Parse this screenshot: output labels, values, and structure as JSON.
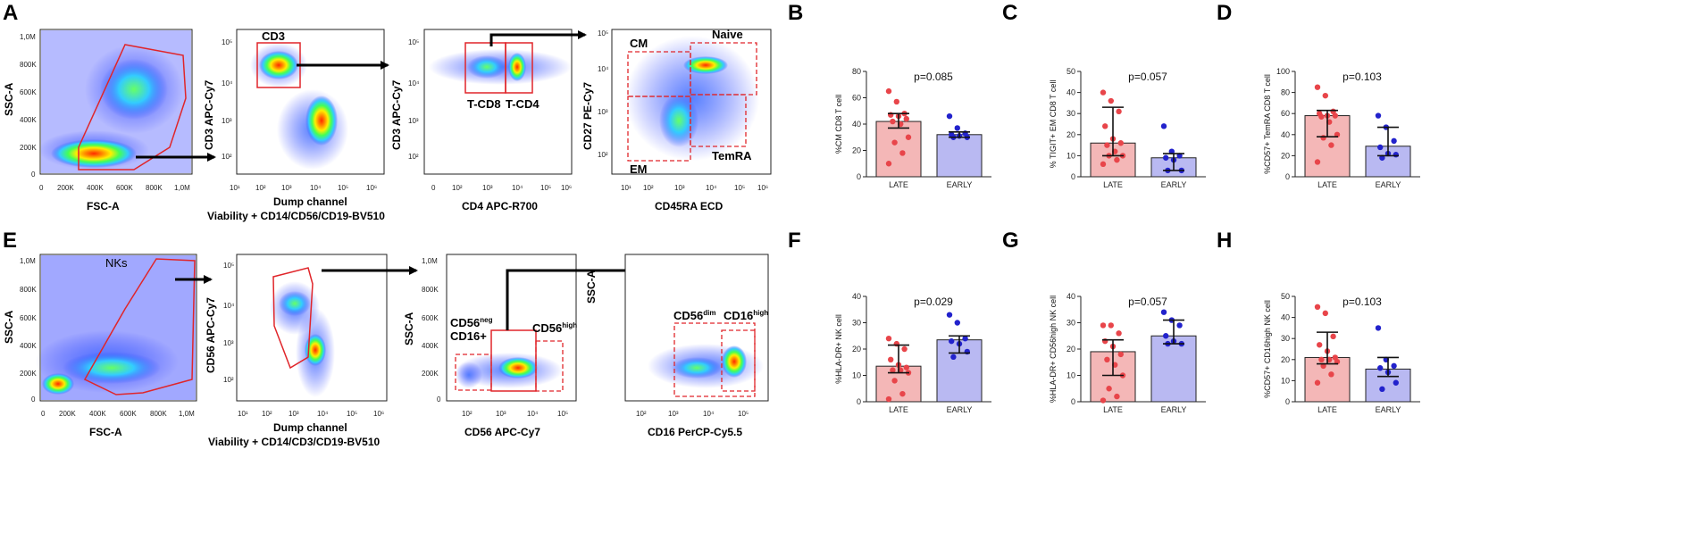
{
  "panel_letters": {
    "A": "A",
    "B": "B",
    "C": "C",
    "D": "D",
    "E": "E",
    "F": "F",
    "G": "G",
    "H": "H"
  },
  "colors": {
    "late_fill": "#f4b7b7",
    "late_dot": "#e8454a",
    "early_fill": "#b9b9f2",
    "early_dot": "#2222cc",
    "gate_red": "#e0252a",
    "arrow": "#000000"
  },
  "flow_top": {
    "p1": {
      "ylabel": "SSC-A",
      "xlabel": "FSC-A"
    },
    "p2": {
      "ylabel": "CD3 APC-Cy7",
      "xlabel1": "Dump channel",
      "xlabel2": "Viability + CD14/CD56/CD19-BV510",
      "gate": "CD3"
    },
    "p3": {
      "ylabel": "CD3 APC-Cy7",
      "xlabel": "CD4 APC-R700",
      "gate1": "T-CD8",
      "gate2": "T-CD4"
    },
    "p4": {
      "ylabel": "CD27 PE-Cy7",
      "xlabel": "CD45RA ECD",
      "cm": "CM",
      "naive": "Naive",
      "em": "EM",
      "temra": "TemRA"
    }
  },
  "flow_bottom": {
    "p1": {
      "ylabel": "SSC-A",
      "xlabel": "FSC-A",
      "gate": "NKs"
    },
    "p2": {
      "ylabel": "CD56 APC-Cy7",
      "xlabel1": "Dump channel",
      "xlabel2": "Viability + CD14/CD3/CD19-BV510"
    },
    "p3": {
      "ylabel": "SSC-A",
      "xlabel": "CD56 APC-Cy7",
      "neg_a": "CD56",
      "neg_sup": "neg",
      "neg_b": "CD16+",
      "high": "CD56",
      "high_sup": "high"
    },
    "p4": {
      "ylabel": "SSC-A",
      "xlabel": "CD16 PerCP-Cy5.5",
      "dim": "CD56",
      "dim_sup": "dim",
      "high": "CD16",
      "high_sup": "high"
    }
  },
  "ticks": {
    "lin_y": [
      "1,0M",
      "800K",
      "600K",
      "400K",
      "200K",
      "0"
    ],
    "lin_x": [
      "0",
      "200K",
      "400K",
      "600K",
      "800K",
      "1,0M"
    ],
    "log_x": [
      "10¹",
      "10²",
      "10³",
      "10⁴",
      "10⁵",
      "10⁶"
    ],
    "log_y5": [
      "10⁵",
      "10⁴",
      "10³",
      "10²"
    ],
    "log_x4": [
      "0",
      "10²",
      "10³",
      "10⁴",
      "10⁵",
      "10⁶"
    ]
  },
  "chart_data": [
    {
      "id": "B",
      "type": "bar",
      "categories": [
        "LATE",
        "EARLY"
      ],
      "values": [
        42,
        32
      ],
      "errors": [
        [
          37,
          48
        ],
        [
          30,
          34
        ]
      ],
      "ylim": [
        0,
        80
      ],
      "yticks": [
        0,
        20,
        40,
        60,
        80
      ],
      "ylabel": "%CM CD8 T cell",
      "p_text": "p=0.085",
      "points": [
        [
          65,
          57,
          48,
          47,
          46,
          44,
          42,
          40,
          30,
          26,
          18,
          10
        ],
        [
          46,
          37,
          33,
          32,
          31,
          30,
          30
        ]
      ]
    },
    {
      "id": "C",
      "type": "bar",
      "categories": [
        "LATE",
        "EARLY"
      ],
      "values": [
        16,
        9
      ],
      "errors": [
        [
          10,
          33
        ],
        [
          3,
          11
        ]
      ],
      "ylim": [
        0,
        50
      ],
      "yticks": [
        0,
        10,
        20,
        30,
        40,
        50
      ],
      "ylabel": "% TIGIT+ EM CD8 T cell",
      "p_text": "p=0.057",
      "points": [
        [
          40,
          36,
          31,
          24,
          18,
          16,
          15,
          12,
          10,
          10,
          8,
          6
        ],
        [
          24,
          12,
          10,
          9,
          8,
          3,
          3
        ]
      ]
    },
    {
      "id": "D",
      "type": "bar",
      "categories": [
        "LATE",
        "EARLY"
      ],
      "values": [
        58,
        29
      ],
      "errors": [
        [
          38,
          63
        ],
        [
          20,
          47
        ]
      ],
      "ylim": [
        0,
        100
      ],
      "yticks": [
        0,
        20,
        40,
        60,
        80,
        100
      ],
      "ylabel": "%CD57+ TemRA CD8 T cell",
      "p_text": "p=0.103",
      "points": [
        [
          85,
          77,
          62,
          60,
          58,
          58,
          57,
          52,
          40,
          37,
          30,
          14
        ],
        [
          58,
          47,
          34,
          28,
          22,
          21,
          18
        ]
      ]
    },
    {
      "id": "F",
      "type": "bar",
      "categories": [
        "LATE",
        "EARLY"
      ],
      "values": [
        13.5,
        23.5
      ],
      "errors": [
        [
          11,
          21.5
        ],
        [
          18.5,
          25
        ]
      ],
      "ylim": [
        0,
        40
      ],
      "yticks": [
        0,
        10,
        20,
        30,
        40
      ],
      "ylabel": "%HLA-DR+ NK cell",
      "p_text": "p=0.029",
      "points": [
        [
          24,
          22,
          20,
          16,
          14,
          13,
          12,
          12,
          11,
          8,
          3,
          1
        ],
        [
          33,
          30,
          24,
          23,
          22,
          19,
          17
        ]
      ]
    },
    {
      "id": "G",
      "type": "bar",
      "categories": [
        "LATE",
        "EARLY"
      ],
      "values": [
        19,
        25
      ],
      "errors": [
        [
          10,
          23.5
        ],
        [
          22,
          31
        ]
      ],
      "ylim": [
        0,
        40
      ],
      "yticks": [
        0,
        10,
        20,
        30,
        40
      ],
      "ylabel": "%HLA-DR+ CD56high NK cell",
      "p_text": "p=0.057",
      "points": [
        [
          29,
          29,
          26,
          23,
          21,
          18,
          16,
          14,
          10,
          5,
          2,
          0.5
        ],
        [
          34,
          31,
          29,
          25,
          23,
          22,
          22
        ]
      ]
    },
    {
      "id": "H",
      "type": "bar",
      "categories": [
        "LATE",
        "EARLY"
      ],
      "values": [
        21,
        15.5
      ],
      "errors": [
        [
          18,
          33
        ],
        [
          12,
          21
        ]
      ],
      "ylim": [
        0,
        50
      ],
      "yticks": [
        0,
        10,
        20,
        30,
        40,
        50
      ],
      "ylabel": "%CD57+ CD16high NK cell",
      "p_text": "p=0.103",
      "points": [
        [
          45,
          42,
          31,
          27,
          24,
          21,
          20,
          20,
          19,
          17,
          13,
          9
        ],
        [
          35,
          20,
          17,
          16,
          14,
          9,
          6
        ]
      ]
    }
  ]
}
